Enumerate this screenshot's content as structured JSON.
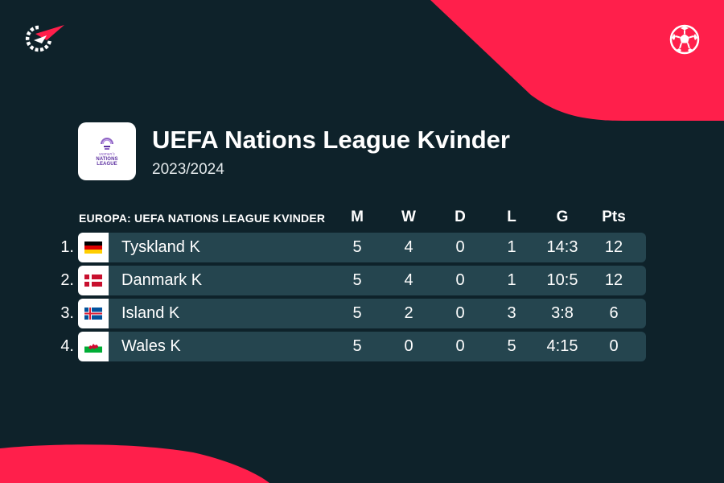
{
  "header": {
    "title": "UEFA Nations League Kvinder",
    "season": "2023/2024",
    "logo_text_small": "women's",
    "logo_text_line1": "NATIONS",
    "logo_text_line2": "LEAGUE"
  },
  "table": {
    "group_label": "EUROPA: UEFA NATIONS LEAGUE KVINDER",
    "columns": [
      "M",
      "W",
      "D",
      "L",
      "G",
      "Pts"
    ],
    "rows": [
      {
        "rank": "1.",
        "team": "Tyskland K",
        "flag": "germany-flag",
        "m": "5",
        "w": "4",
        "d": "0",
        "l": "1",
        "g": "14:3",
        "pts": "12"
      },
      {
        "rank": "2.",
        "team": "Danmark K",
        "flag": "denmark-flag",
        "m": "5",
        "w": "4",
        "d": "0",
        "l": "1",
        "g": "10:5",
        "pts": "12"
      },
      {
        "rank": "3.",
        "team": "Island K",
        "flag": "iceland-flag",
        "m": "5",
        "w": "2",
        "d": "0",
        "l": "3",
        "g": "3:8",
        "pts": "6"
      },
      {
        "rank": "4.",
        "team": "Wales K",
        "flag": "wales-flag",
        "m": "5",
        "w": "0",
        "d": "0",
        "l": "5",
        "g": "4:15",
        "pts": "0"
      }
    ]
  },
  "icons": {
    "brand": "flashscore-logo-icon",
    "sport": "soccer-ball-icon"
  },
  "colors": {
    "background": "#0e222a",
    "accent": "#ff1f4b",
    "row": "#25454f"
  }
}
